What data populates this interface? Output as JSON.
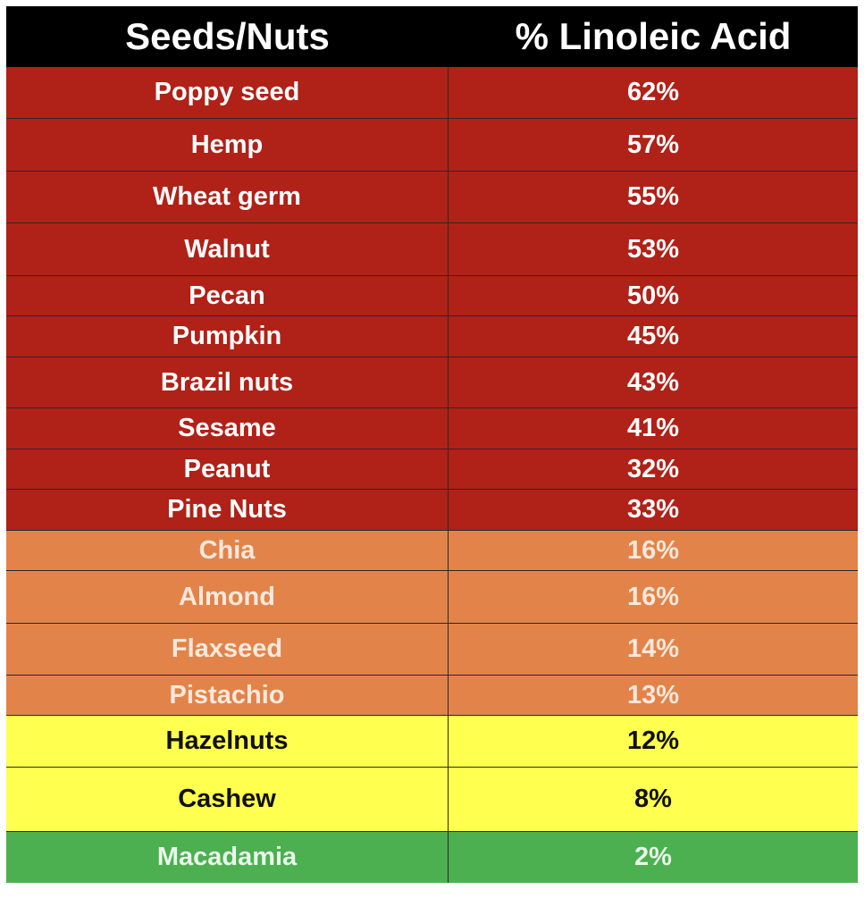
{
  "header": {
    "col1": "Seeds/Nuts",
    "col2": "% Linoleic Acid"
  },
  "colors": {
    "header_bg": "#000000",
    "red": "#b02117",
    "orange": "#e2844a",
    "yellow": "#ffff4f",
    "green": "#4caf50"
  },
  "rows": [
    {
      "name": "Poppy seed",
      "value": "62%",
      "tier": "red"
    },
    {
      "name": "Hemp",
      "value": "57%",
      "tier": "red"
    },
    {
      "name": "Wheat germ",
      "value": "55%",
      "tier": "red"
    },
    {
      "name": "Walnut",
      "value": "53%",
      "tier": "red"
    },
    {
      "name": "Pecan",
      "value": "50%",
      "tier": "red"
    },
    {
      "name": "Pumpkin",
      "value": "45%",
      "tier": "red"
    },
    {
      "name": "Brazil nuts",
      "value": "43%",
      "tier": "red"
    },
    {
      "name": "Sesame",
      "value": "41%",
      "tier": "red"
    },
    {
      "name": "Peanut",
      "value": "32%",
      "tier": "red"
    },
    {
      "name": "Pine Nuts",
      "value": "33%",
      "tier": "red"
    },
    {
      "name": "Chia",
      "value": "16%",
      "tier": "orange"
    },
    {
      "name": "Almond",
      "value": "16%",
      "tier": "orange"
    },
    {
      "name": "Flaxseed",
      "value": "14%",
      "tier": "orange"
    },
    {
      "name": "Pistachio",
      "value": "13%",
      "tier": "orange"
    },
    {
      "name": "Hazelnuts",
      "value": "12%",
      "tier": "yellow"
    },
    {
      "name": "Cashew",
      "value": "8%",
      "tier": "yellow"
    },
    {
      "name": "Macadamia",
      "value": "2%",
      "tier": "green"
    }
  ]
}
